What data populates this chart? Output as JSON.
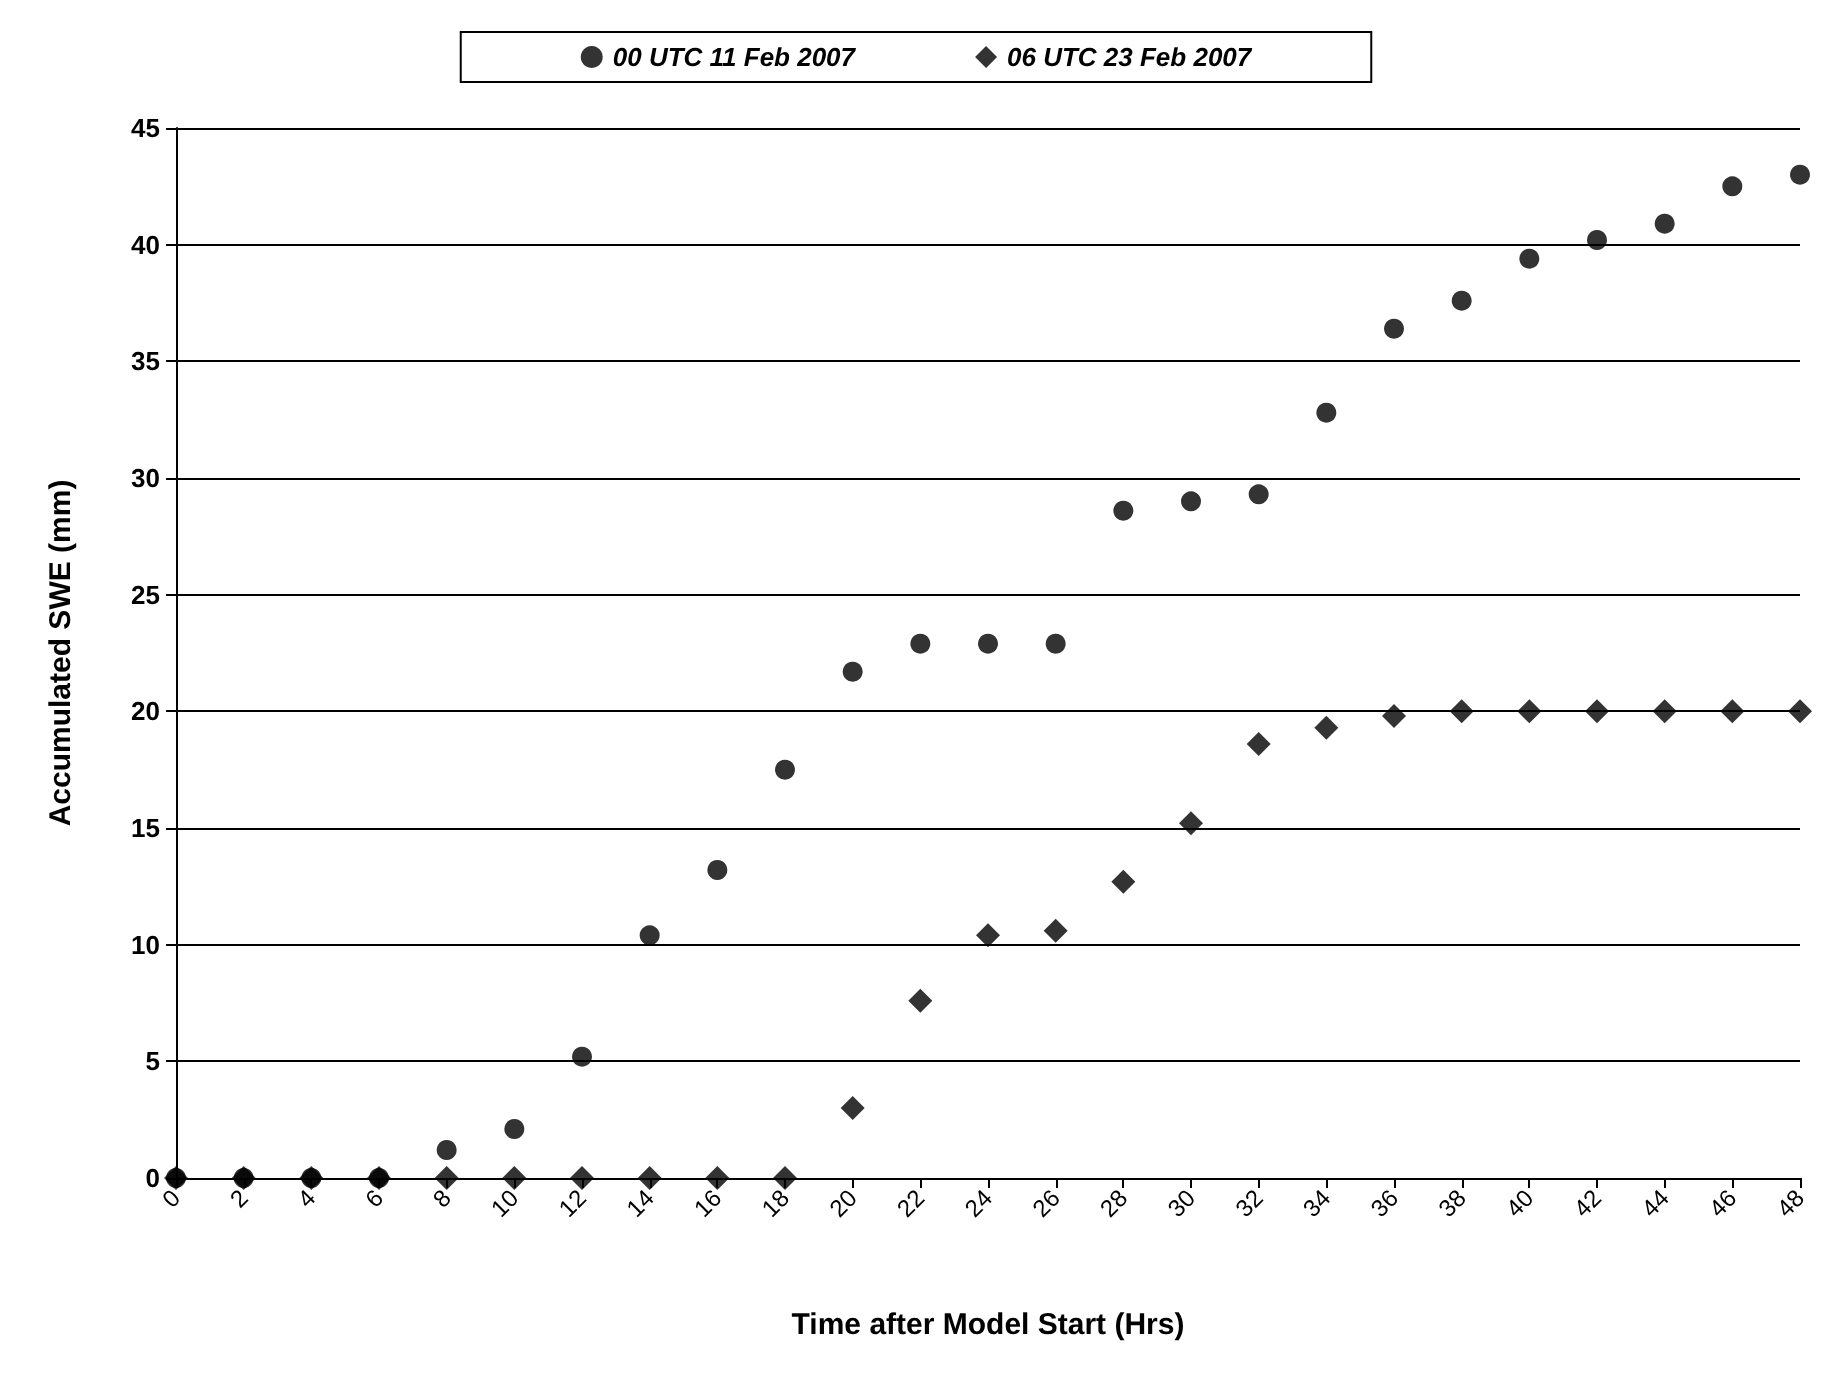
{
  "chart_data": {
    "type": "scatter",
    "xlabel": "Time after Model Start (Hrs)",
    "ylabel": "Accumulated SWE (mm)",
    "x": [
      0,
      2,
      4,
      6,
      8,
      10,
      12,
      14,
      16,
      18,
      20,
      22,
      24,
      26,
      28,
      30,
      32,
      34,
      36,
      38,
      40,
      42,
      44,
      46,
      48
    ],
    "series": [
      {
        "name": "00 UTC 11 Feb 2007",
        "color": "#000000",
        "marker": "circle",
        "values": [
          0,
          0,
          0,
          0,
          1.2,
          2.1,
          5.2,
          10.4,
          13.2,
          17.5,
          21.7,
          22.9,
          22.9,
          22.9,
          28.6,
          29,
          29.3,
          32.8,
          36.4,
          37.6,
          39.4,
          40.2,
          40.9,
          42.5,
          43
        ]
      },
      {
        "name": "06 UTC 23 Feb 2007",
        "color": "#000000",
        "marker": "diamond",
        "values": [
          0,
          0,
          0,
          0,
          0,
          0,
          0,
          0,
          0,
          0,
          3,
          7.6,
          10.4,
          10.6,
          12.7,
          15.2,
          18.6,
          19.3,
          19.8,
          20,
          20,
          20,
          20,
          20,
          20
        ]
      }
    ],
    "xlim": [
      0,
      48
    ],
    "xticks": [
      0,
      2,
      4,
      6,
      8,
      10,
      12,
      14,
      16,
      18,
      20,
      22,
      24,
      26,
      28,
      30,
      32,
      34,
      36,
      38,
      40,
      42,
      44,
      46,
      48
    ],
    "ylim": [
      0,
      45
    ],
    "yticks": [
      0,
      5,
      10,
      15,
      20,
      25,
      30,
      35,
      40,
      45
    ],
    "grid": "y",
    "legend": "top"
  }
}
